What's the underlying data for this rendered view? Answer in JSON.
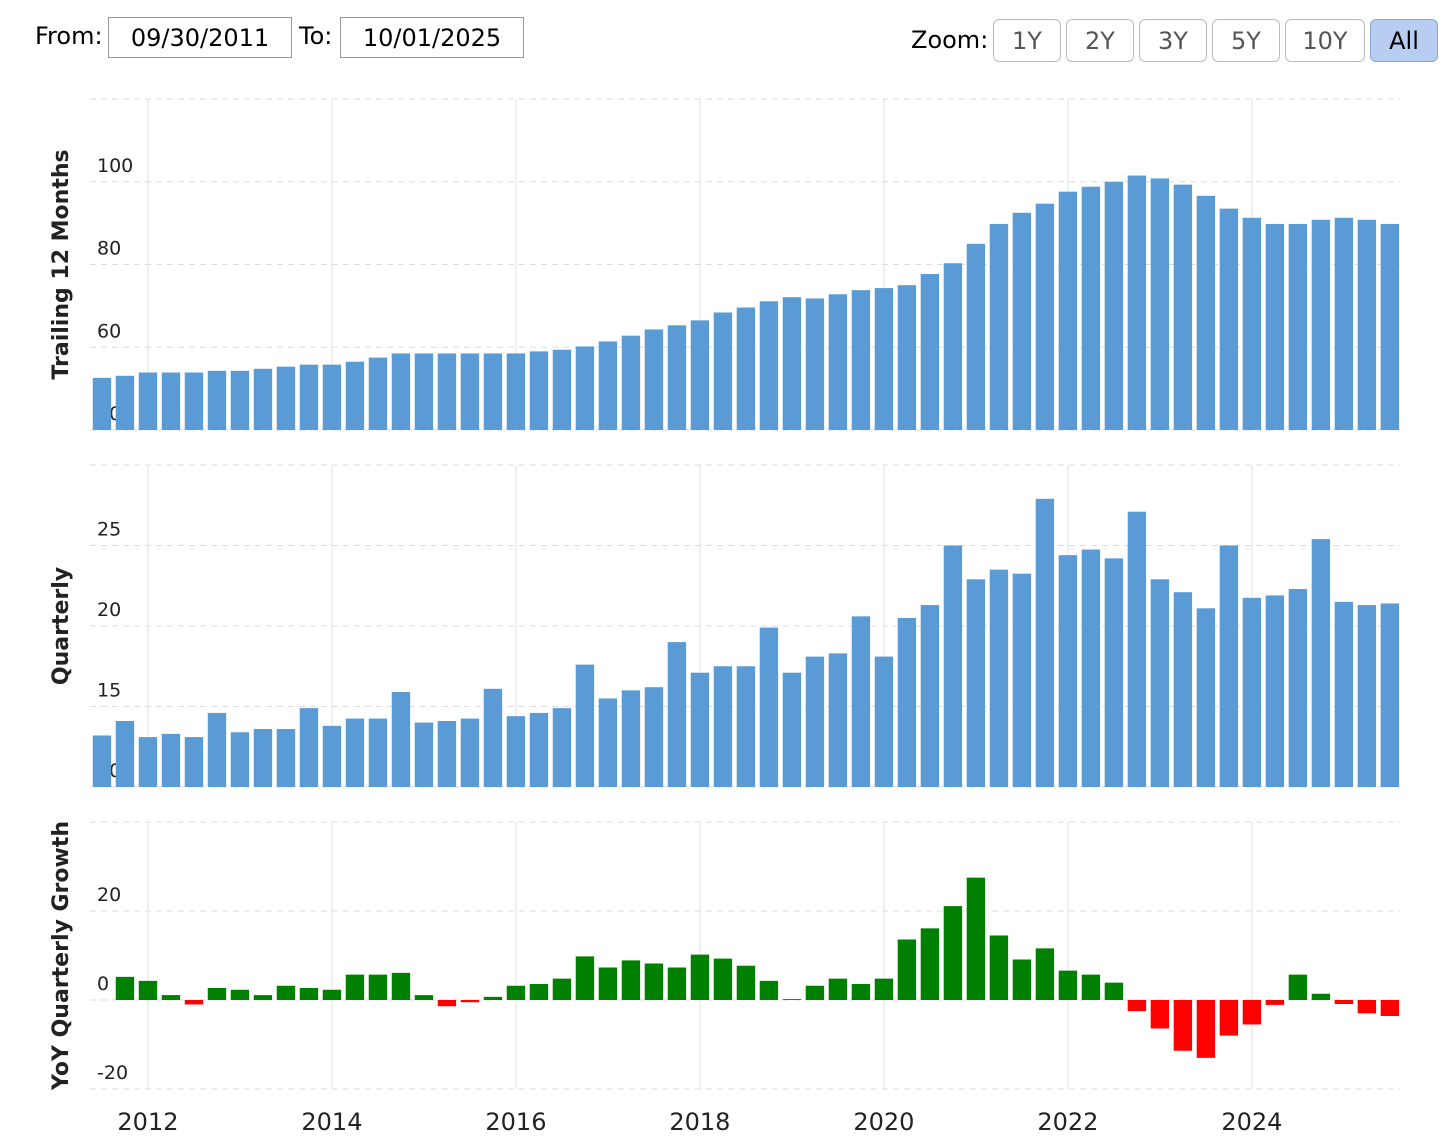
{
  "controls": {
    "from_label": "From:",
    "from": "09/30/2011",
    "to_label": "To:",
    "to": "10/01/2025",
    "zoom_label": "Zoom:",
    "zoom": [
      "1Y",
      "2Y",
      "3Y",
      "5Y",
      "10Y",
      "All"
    ],
    "zoom_selected": 5
  },
  "chart_data": {
    "type": "bar",
    "grid": true,
    "x": [
      2011.5,
      2011.75,
      2012,
      2012.25,
      2012.5,
      2012.75,
      2013,
      2013.25,
      2013.5,
      2013.75,
      2014,
      2014.25,
      2014.5,
      2014.75,
      2015,
      2015.25,
      2015.5,
      2015.75,
      2016,
      2016.25,
      2016.5,
      2016.75,
      2017,
      2017.25,
      2017.5,
      2017.75,
      2018,
      2018.25,
      2018.5,
      2018.75,
      2019,
      2019.25,
      2019.5,
      2019.75,
      2020,
      2020.25,
      2020.5,
      2020.75,
      2021,
      2021.25,
      2021.5,
      2021.75,
      2022,
      2022.25,
      2022.5,
      2022.75,
      2023,
      2023.25,
      2023.5,
      2023.75,
      2024,
      2024.25,
      2024.5,
      2024.75,
      2025,
      2025.25,
      2025.5
    ],
    "xlim": [
      2011.37,
      2025.61
    ],
    "xticks": [
      2012,
      2014,
      2016,
      2018,
      2020,
      2022,
      2024
    ],
    "panels": [
      {
        "ylabel": "Trailing 12 Months",
        "ylim": [
          40,
          120
        ],
        "yticks": [
          40,
          60,
          80,
          100
        ],
        "color": "#5b9bd5",
        "values": [
          52.6,
          53.1,
          53.9,
          53.9,
          53.9,
          54.3,
          54.3,
          54.8,
          55.3,
          55.8,
          55.8,
          56.5,
          57.5,
          58.5,
          58.5,
          58.5,
          58.5,
          58.5,
          58.5,
          59,
          59.4,
          60.2,
          61.4,
          62.8,
          64.3,
          65.3,
          66.5,
          68.4,
          69.6,
          71.1,
          72.1,
          71.8,
          72.8,
          73.8,
          74.3,
          75,
          77.7,
          80.3,
          85,
          89.8,
          92.5,
          94.7,
          97.6,
          98.8,
          100,
          101.5,
          100.8,
          99.3,
          96.6,
          93.5,
          91.3,
          89.8,
          89.8,
          90.8,
          91.3,
          90.8,
          89.8
        ]
      },
      {
        "ylabel": "Quarterly",
        "ylim": [
          10,
          30
        ],
        "yticks": [
          10,
          15,
          20,
          25
        ],
        "color": "#5b9bd5",
        "values": [
          13.2,
          14.1,
          13.1,
          13.3,
          13.1,
          14.6,
          13.4,
          13.6,
          13.6,
          14.9,
          13.8,
          14.25,
          14.25,
          15.9,
          14,
          14.1,
          14.25,
          16.1,
          14.4,
          14.6,
          14.9,
          17.6,
          15.5,
          16,
          16.2,
          19,
          17.1,
          17.5,
          17.5,
          19.9,
          17.1,
          18.1,
          18.3,
          20.6,
          18.1,
          20.5,
          21.3,
          25,
          22.9,
          23.5,
          23.25,
          27.9,
          24.4,
          24.75,
          24.2,
          27.1,
          22.9,
          22.1,
          21.1,
          25,
          21.75,
          21.9,
          22.3,
          25.4,
          21.5,
          21.3,
          21.4
        ]
      },
      {
        "ylabel": "YoY Quarterly Growth",
        "ylim": [
          -20,
          40
        ],
        "yticks": [
          -20,
          0,
          20
        ],
        "color": "#008000",
        "negative_color": "#ff0000",
        "values": [
          null,
          5.2,
          4.3,
          1.1,
          -1,
          2.7,
          2.3,
          1.1,
          3.2,
          2.7,
          2.3,
          5.7,
          5.7,
          6.1,
          1.1,
          -1.4,
          -0.5,
          0.7,
          3.2,
          3.6,
          4.8,
          9.8,
          7.3,
          8.9,
          8.2,
          7.3,
          10.2,
          9.3,
          7.7,
          4.3,
          0.2,
          3.2,
          4.8,
          3.6,
          4.8,
          13.6,
          16.1,
          21.1,
          27.5,
          14.5,
          9.1,
          11.6,
          6.6,
          5.7,
          3.9,
          -2.5,
          -6.4,
          -11.4,
          -13,
          -8,
          -5.5,
          -1.1,
          5.7,
          1.4,
          -0.9,
          -3,
          -3.6
        ]
      }
    ]
  }
}
